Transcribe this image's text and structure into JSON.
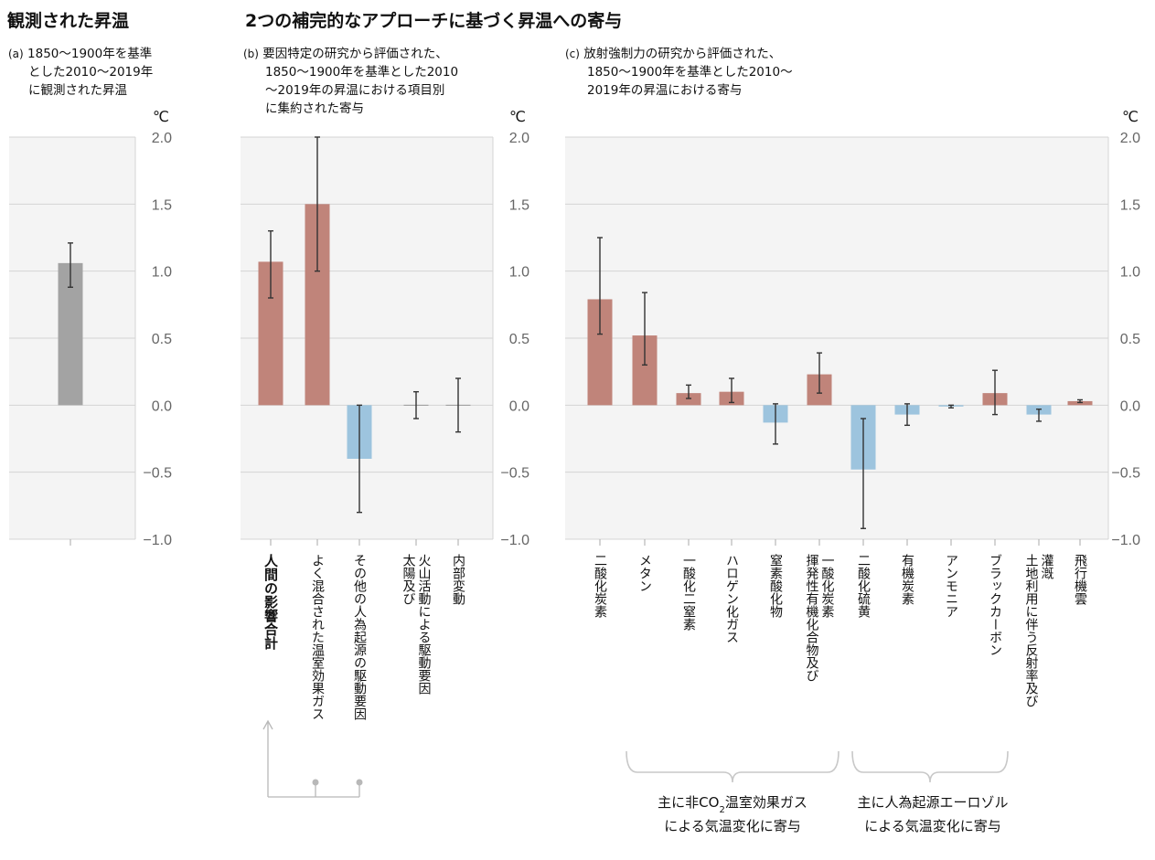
{
  "titles": {
    "left": "観測された昇温",
    "main": "2つの補完的なアプローチに基づく昇温への寄与"
  },
  "subtitles": {
    "a": {
      "tag": "(a)",
      "lines": [
        "1850～1900年を基準",
        "とした2010～2019年",
        "に観測された昇温"
      ]
    },
    "b": {
      "tag": "(b)",
      "lines": [
        "要因特定の研究から評価された、",
        "1850～1900年を基準とした2010",
        "～2019年の昇温における項目別",
        "に集約された寄与"
      ]
    },
    "c": {
      "tag": "(c)",
      "lines": [
        "放射強制力の研究から評価された、",
        "1850～1900年を基準とした2010～",
        "2019年の昇温における寄与"
      ]
    }
  },
  "axis": {
    "unit": "℃",
    "ticks": [
      "2.0",
      "1.5",
      "1.0",
      "0.5",
      "0.0",
      "−0.5",
      "−1.0"
    ],
    "tick_values": [
      2.0,
      1.5,
      1.0,
      0.5,
      0.0,
      -0.5,
      -1.0
    ],
    "ylim": [
      -1.0,
      2.0
    ]
  },
  "colors": {
    "warming": "#c0847a",
    "cooling": "#9dc4de",
    "observed": "#a3a3a3",
    "panel_bg": "#f4f4f4",
    "grid": "#d4d4d4",
    "error": "#333333"
  },
  "brackets": {
    "left": {
      "line1": "主に非",
      "co2": "CO",
      "sub": "2",
      "line1b": "温室効果ガス",
      "line2": "による気温変化に寄与"
    },
    "right": {
      "line1": "主に人為起源エーロゾル",
      "line2": "による気温変化に寄与"
    }
  },
  "chart_data": [
    {
      "id": "a",
      "type": "bar",
      "ylabel": "℃",
      "ylim": [
        -1.0,
        2.0
      ],
      "categories": [
        ""
      ],
      "values": [
        1.06
      ],
      "error_low": [
        0.88
      ],
      "error_high": [
        1.21
      ],
      "colors": [
        "observed"
      ]
    },
    {
      "id": "b",
      "type": "bar",
      "ylabel": "℃",
      "ylim": [
        -1.0,
        2.0
      ],
      "categories": [
        "人間の影響合計",
        "よく混合された温室効果ガス",
        "その他の人為起源の駆動要因",
        "太陽及び火山活動による駆動要因",
        "内部変動"
      ],
      "values": [
        1.07,
        1.5,
        -0.4,
        0.0,
        0.0
      ],
      "error_low": [
        0.8,
        1.0,
        -0.8,
        -0.1,
        -0.2
      ],
      "error_high": [
        1.3,
        2.0,
        0.0,
        0.1,
        0.2
      ],
      "colors": [
        "warming",
        "warming",
        "cooling",
        "none",
        "none"
      ]
    },
    {
      "id": "c",
      "type": "bar",
      "ylabel": "℃",
      "ylim": [
        -1.0,
        2.0
      ],
      "categories": [
        "二酸化炭素",
        "メタン",
        "一酸化二窒素",
        "ハロゲン化ガス",
        "窒素酸化物",
        "揮発性有機化合物及び一酸化炭素",
        "二酸化硫黄",
        "有機炭素",
        "アンモニア",
        "ブラックカーボン",
        "土地利用に伴う反射率及び灌漑",
        "飛行機雲"
      ],
      "values": [
        0.79,
        0.52,
        0.09,
        0.1,
        -0.13,
        0.23,
        -0.48,
        -0.07,
        -0.01,
        0.09,
        -0.07,
        0.03
      ],
      "error_low": [
        0.53,
        0.3,
        0.05,
        0.02,
        -0.29,
        0.09,
        -0.92,
        -0.15,
        -0.02,
        -0.07,
        -0.12,
        0.02
      ],
      "error_high": [
        1.25,
        0.84,
        0.15,
        0.2,
        0.01,
        0.39,
        -0.1,
        0.01,
        0.0,
        0.26,
        -0.03,
        0.04
      ],
      "colors": [
        "warming",
        "warming",
        "warming",
        "warming",
        "cooling",
        "warming",
        "cooling",
        "cooling",
        "cooling",
        "warming",
        "cooling",
        "warming"
      ]
    }
  ]
}
